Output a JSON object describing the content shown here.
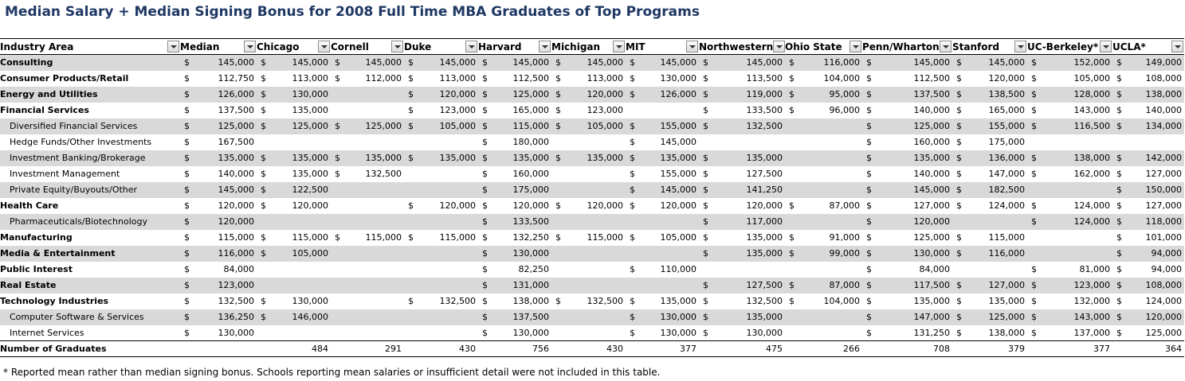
{
  "title": "Median Salary + Median Signing Bonus for 2008 Full Time MBA Graduates of Top Programs",
  "columns": [
    "Industry Area",
    "Median",
    "Chicago",
    "Cornell",
    "Duke",
    "Harvard",
    "Michigan",
    "MIT",
    "Northwestern",
    "Ohio State",
    "Penn/Wharton",
    "Stanford",
    "UC-Berkeley*",
    "UCLA*"
  ],
  "rows": [
    {
      "label": "Consulting",
      "bold": true,
      "values": [
        "145,000",
        "145,000",
        "145,000",
        "145,000",
        "145,000",
        "145,000",
        "145,000",
        "145,000",
        "116,000",
        "145,000",
        "145,000",
        "152,000",
        "149,000"
      ]
    },
    {
      "label": "Consumer Products/Retail",
      "bold": true,
      "values": [
        "112,750",
        "113,000",
        "112,000",
        "113,000",
        "112,500",
        "113,000",
        "130,000",
        "113,500",
        "104,000",
        "112,500",
        "120,000",
        "105,000",
        "108,000"
      ]
    },
    {
      "label": "Energy and Utilities",
      "bold": true,
      "values": [
        "126,000",
        "130,000",
        "",
        "120,000",
        "125,000",
        "120,000",
        "126,000",
        "119,000",
        "95,000",
        "137,500",
        "138,500",
        "128,000",
        "138,000"
      ]
    },
    {
      "label": "Financial Services",
      "bold": true,
      "values": [
        "137,500",
        "135,000",
        "",
        "123,000",
        "165,000",
        "123,000",
        "",
        "133,500",
        "96,000",
        "140,000",
        "165,000",
        "143,000",
        "140,000"
      ]
    },
    {
      "label": "Diversified Financial Services",
      "bold": false,
      "values": [
        "125,000",
        "125,000",
        "125,000",
        "105,000",
        "115,000",
        "105,000",
        "155,000",
        "132,500",
        "",
        "125,000",
        "155,000",
        "116,500",
        "134,000"
      ]
    },
    {
      "label": "Hedge Funds/Other Investments",
      "bold": false,
      "values": [
        "167,500",
        "",
        "",
        "",
        "180,000",
        "",
        "145,000",
        "",
        "",
        "160,000",
        "175,000",
        "",
        ""
      ]
    },
    {
      "label": "Investment Banking/Brokerage",
      "bold": false,
      "values": [
        "135,000",
        "135,000",
        "135,000",
        "135,000",
        "135,000",
        "135,000",
        "135,000",
        "135,000",
        "",
        "135,000",
        "136,000",
        "138,000",
        "142,000"
      ]
    },
    {
      "label": "Investment Management",
      "bold": false,
      "values": [
        "140,000",
        "135,000",
        "132,500",
        "",
        "160,000",
        "",
        "155,000",
        "127,500",
        "",
        "140,000",
        "147,000",
        "162,000",
        "127,000"
      ]
    },
    {
      "label": "Private Equity/Buyouts/Other",
      "bold": false,
      "values": [
        "145,000",
        "122,500",
        "",
        "",
        "175,000",
        "",
        "145,000",
        "141,250",
        "",
        "145,000",
        "182,500",
        "",
        "150,000"
      ]
    },
    {
      "label": "Health Care",
      "bold": true,
      "values": [
        "120,000",
        "120,000",
        "",
        "120,000",
        "120,000",
        "120,000",
        "120,000",
        "120,000",
        "87,000",
        "127,000",
        "124,000",
        "124,000",
        "127,000"
      ]
    },
    {
      "label": "Pharmaceuticals/Biotechnology",
      "bold": false,
      "values": [
        "120,000",
        "",
        "",
        "",
        "133,500",
        "",
        "",
        "117,000",
        "",
        "120,000",
        "",
        "124,000",
        "118,000"
      ]
    },
    {
      "label": "Manufacturing",
      "bold": true,
      "values": [
        "115,000",
        "115,000",
        "115,000",
        "115,000",
        "132,250",
        "115,000",
        "105,000",
        "135,000",
        "91,000",
        "125,000",
        "115,000",
        "",
        "101,000"
      ]
    },
    {
      "label": "Media & Entertainment",
      "bold": true,
      "values": [
        "116,000",
        "105,000",
        "",
        "",
        "130,000",
        "",
        "",
        "135,000",
        "99,000",
        "130,000",
        "116,000",
        "",
        "94,000"
      ]
    },
    {
      "label": "Public Interest",
      "bold": true,
      "values": [
        "84,000",
        "",
        "",
        "",
        "82,250",
        "",
        "110,000",
        "",
        "",
        "84,000",
        "",
        "81,000",
        "94,000"
      ]
    },
    {
      "label": "Real Estate",
      "bold": true,
      "values": [
        "123,000",
        "",
        "",
        "",
        "131,000",
        "",
        "",
        "127,500",
        "87,000",
        "117,500",
        "127,000",
        "123,000",
        "108,000"
      ]
    },
    {
      "label": "Technology Industries",
      "bold": true,
      "values": [
        "132,500",
        "130,000",
        "",
        "132,500",
        "138,000",
        "132,500",
        "135,000",
        "132,500",
        "104,000",
        "135,000",
        "135,000",
        "132,000",
        "124,000"
      ]
    },
    {
      "label": "Computer Software & Services",
      "bold": false,
      "values": [
        "136,250",
        "146,000",
        "",
        "",
        "137,500",
        "",
        "130,000",
        "135,000",
        "",
        "147,000",
        "125,000",
        "143,000",
        "120,000"
      ]
    },
    {
      "label": "Internet Services",
      "bold": false,
      "values": [
        "130,000",
        "",
        "",
        "",
        "130,000",
        "",
        "130,000",
        "130,000",
        "",
        "131,250",
        "138,000",
        "137,000",
        "125,000"
      ]
    }
  ],
  "totals": {
    "label": "Number of Graduates",
    "values": [
      "",
      "484",
      "291",
      "430",
      "756",
      "430",
      "377",
      "475",
      "266",
      "708",
      "379",
      "377",
      "364"
    ]
  },
  "currency_symbol": "$",
  "footnote": "* Reported mean rather than median signing bonus. Schools reporting mean salaries or insufficient detail were not included in this table.",
  "colors": {
    "title": "#1f3864",
    "shade": "#d9d9d9"
  }
}
